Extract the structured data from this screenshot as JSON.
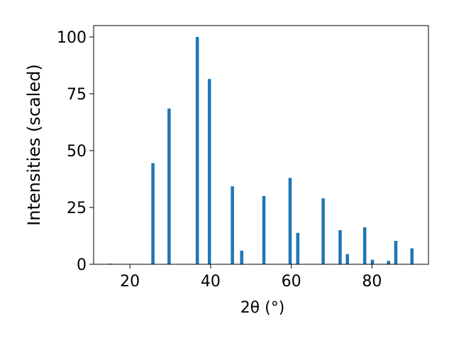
{
  "chart_data": {
    "type": "bar",
    "xlabel": "2θ (°)",
    "ylabel": "Intensities (scaled)",
    "xlim": [
      11,
      94
    ],
    "ylim": [
      0,
      105
    ],
    "xticks": [
      20,
      40,
      60,
      80
    ],
    "yticks": [
      0,
      25,
      50,
      75,
      100
    ],
    "grid": false,
    "bar_width": 0.8,
    "bar_color": "#1f77b4",
    "x": [
      15.1,
      25.7,
      29.7,
      36.7,
      39.7,
      45.4,
      47.7,
      53.2,
      59.7,
      61.6,
      67.9,
      72.1,
      73.9,
      78.2,
      80.1,
      84.1,
      85.9,
      89.9
    ],
    "values": [
      0.3,
      44.5,
      68.5,
      100.0,
      81.5,
      34.3,
      6.0,
      30.0,
      38.0,
      13.8,
      29.0,
      15.0,
      4.5,
      16.3,
      2.0,
      1.5,
      10.3,
      7.0
    ]
  }
}
